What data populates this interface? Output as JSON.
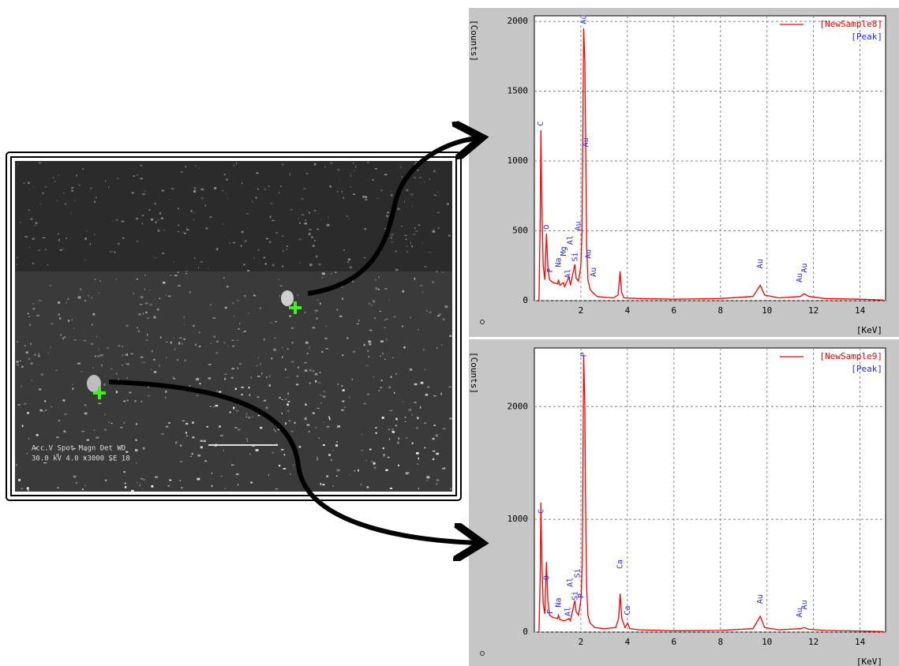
{
  "sem_image": {
    "info_header": "Acc.V  Spot  Magn   Det  WD",
    "info_values": "30.0 kV  4.0  x3000  SE  18"
  },
  "chart_data": [
    {
      "type": "line",
      "y_label": "[Counts]",
      "x_label": "[KeV]",
      "peak_legend": "[Peak]",
      "peak_color": "#2a2aff",
      "grid": true,
      "xlim": [
        0,
        15.1
      ],
      "ylim": [
        0,
        2040
      ],
      "xticks": [
        2,
        4,
        6,
        8,
        10,
        12,
        14
      ],
      "yticks": [
        0,
        500,
        1000,
        1500,
        2000
      ],
      "x": [
        0.2,
        0.25,
        0.28,
        0.32,
        0.38,
        0.45,
        0.52,
        0.58,
        0.65,
        0.8,
        1.0,
        1.04,
        1.1,
        1.25,
        1.3,
        1.49,
        1.55,
        1.74,
        1.8,
        1.9,
        2.0,
        2.05,
        2.12,
        2.17,
        2.2,
        2.25,
        2.3,
        2.4,
        2.5,
        2.7,
        3.0,
        3.4,
        3.6,
        3.69,
        3.75,
        3.85,
        4.5,
        6,
        8,
        9.4,
        9.71,
        9.9,
        10.5,
        11.44,
        11.6,
        11.8,
        12.5,
        14,
        15
      ],
      "series": [
        {
          "name": "[NewSample8]",
          "color": "#ff0000",
          "values": [
            0,
            600,
            1220,
            700,
            250,
            150,
            480,
            250,
            150,
            130,
            120,
            150,
            110,
            130,
            100,
            170,
            110,
            260,
            160,
            140,
            250,
            500,
            1950,
            1700,
            1250,
            400,
            150,
            80,
            60,
            30,
            25,
            20,
            40,
            210,
            60,
            20,
            15,
            10,
            15,
            30,
            110,
            40,
            20,
            30,
            50,
            30,
            15,
            10,
            5
          ]
        }
      ],
      "peaks": [
        {
          "label": "C",
          "x": 0.28,
          "y": 1250
        },
        {
          "label": "O",
          "x": 0.52,
          "y": 510
        },
        {
          "label": "F",
          "x": 0.68,
          "y": 200
        },
        {
          "label": "Na",
          "x": 1.04,
          "y": 240
        },
        {
          "label": "Mg",
          "x": 1.25,
          "y": 320
        },
        {
          "label": "Al",
          "x": 1.45,
          "y": 160
        },
        {
          "label": "Al",
          "x": 1.55,
          "y": 400
        },
        {
          "label": "Si",
          "x": 1.74,
          "y": 280
        },
        {
          "label": "Au",
          "x": 1.88,
          "y": 500
        },
        {
          "label": "Au",
          "x": 2.12,
          "y": 1980
        },
        {
          "label": "Au",
          "x": 2.2,
          "y": 1100
        },
        {
          "label": "Au",
          "x": 2.32,
          "y": 300
        },
        {
          "label": "Au",
          "x": 2.55,
          "y": 170
        },
        {
          "label": "Au",
          "x": 9.71,
          "y": 230
        },
        {
          "label": "Au",
          "x": 11.4,
          "y": 130
        },
        {
          "label": "Au",
          "x": 11.6,
          "y": 200
        }
      ]
    },
    {
      "type": "line",
      "y_label": "[Counts]",
      "x_label": "[KeV]",
      "peak_legend": "[Peak]",
      "peak_color": "#2a2aff",
      "grid": true,
      "xlim": [
        0,
        15.1
      ],
      "ylim": [
        0,
        2520
      ],
      "xticks": [
        2,
        4,
        6,
        8,
        10,
        12,
        14
      ],
      "yticks": [
        0,
        1000,
        2000
      ],
      "x": [
        0.2,
        0.25,
        0.28,
        0.32,
        0.38,
        0.45,
        0.52,
        0.58,
        0.65,
        0.8,
        1.0,
        1.04,
        1.1,
        1.3,
        1.49,
        1.55,
        1.74,
        1.8,
        1.9,
        2.01,
        2.06,
        2.12,
        2.17,
        2.2,
        2.25,
        2.3,
        2.4,
        2.6,
        3.0,
        3.5,
        3.62,
        3.69,
        3.76,
        3.9,
        4.01,
        4.1,
        4.5,
        6,
        8,
        9.4,
        9.71,
        9.9,
        10.5,
        11.44,
        11.6,
        11.8,
        12.5,
        14,
        15
      ],
      "series": [
        {
          "name": "[NewSample9]",
          "color": "#ff0000",
          "values": [
            0,
            500,
            1150,
            650,
            250,
            160,
            620,
            280,
            150,
            130,
            120,
            150,
            110,
            100,
            120,
            100,
            280,
            180,
            150,
            300,
            600,
            2450,
            2000,
            1200,
            400,
            150,
            80,
            40,
            30,
            40,
            120,
            340,
            120,
            40,
            80,
            30,
            20,
            12,
            15,
            30,
            140,
            40,
            20,
            30,
            40,
            25,
            15,
            10,
            5
          ]
        }
      ],
      "peaks": [
        {
          "label": "C",
          "x": 0.28,
          "y": 1050
        },
        {
          "label": "O",
          "x": 0.52,
          "y": 460
        },
        {
          "label": "F",
          "x": 0.68,
          "y": 160
        },
        {
          "label": "Na",
          "x": 1.04,
          "y": 220
        },
        {
          "label": "Al",
          "x": 1.45,
          "y": 140
        },
        {
          "label": "Al",
          "x": 1.55,
          "y": 400
        },
        {
          "label": "Si",
          "x": 1.74,
          "y": 280
        },
        {
          "label": "Si",
          "x": 1.85,
          "y": 480
        },
        {
          "label": "P",
          "x": 2.0,
          "y": 300
        },
        {
          "label": "P",
          "x": 2.12,
          "y": 2440
        },
        {
          "label": "Ca",
          "x": 3.69,
          "y": 560
        },
        {
          "label": "Ca",
          "x": 4.01,
          "y": 150
        },
        {
          "label": "Au",
          "x": 9.71,
          "y": 250
        },
        {
          "label": "Au",
          "x": 11.4,
          "y": 130
        },
        {
          "label": "Au",
          "x": 11.6,
          "y": 200
        }
      ]
    }
  ]
}
